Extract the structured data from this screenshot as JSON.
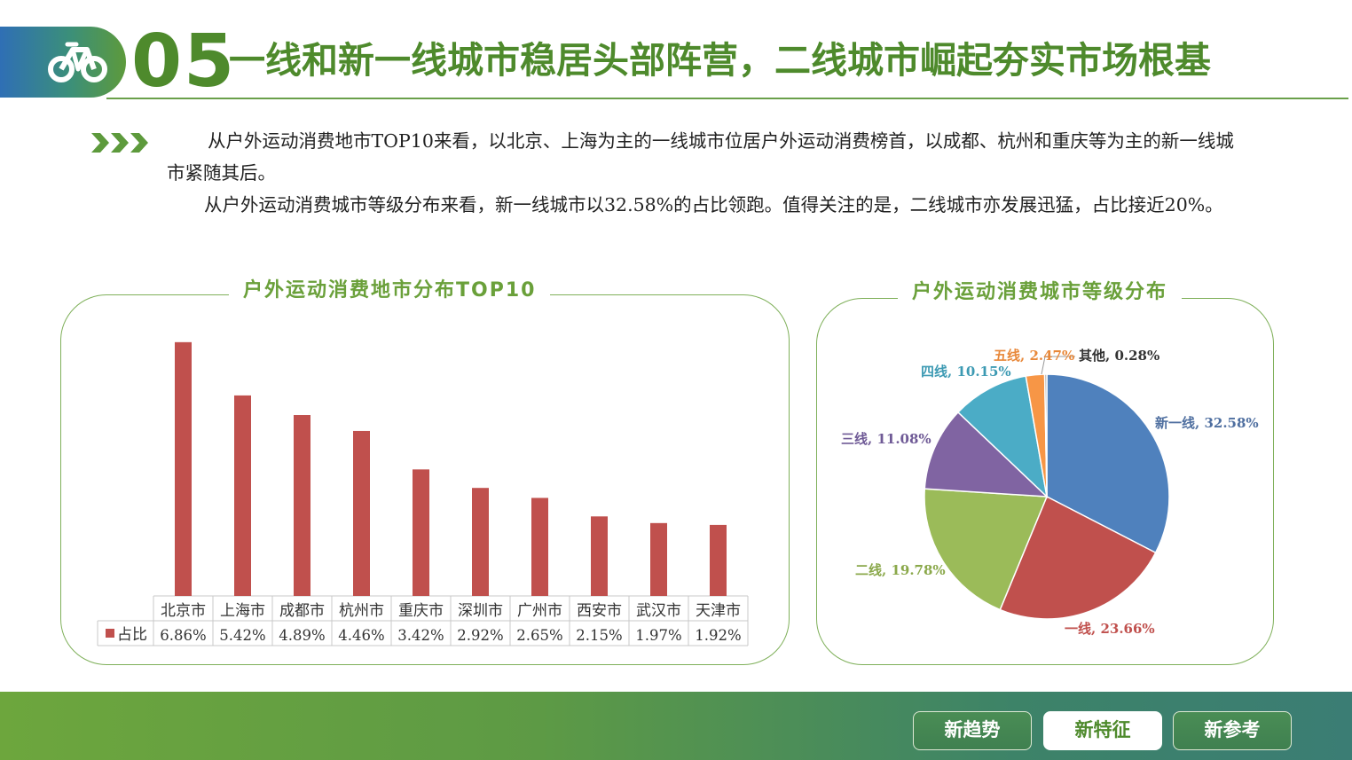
{
  "header": {
    "number": "05",
    "title": "一线和新一线城市稳居头部阵营，二线城市崛起夯实市场根基",
    "icon": "bicycle-icon"
  },
  "intro": {
    "paragraph1": "从户外运动消费地市TOP10来看，以北京、上海为主的一线城市位居户外运动消费榜首，以成都、杭州和重庆等为主的新一线城市紧随其后。",
    "paragraph2": "从户外运动消费城市等级分布来看，新一线城市以32.58%的占比领跑。值得关注的是，二线城市亦发展迅猛，占比接近20%。"
  },
  "colors": {
    "accent_green": "#4e8a2c",
    "bar_red": "#c0504d",
    "pie": [
      "#4f81bd",
      "#c0504d",
      "#9bbb59",
      "#8064a2",
      "#4bacc6",
      "#f79646",
      "#a5a5a5"
    ]
  },
  "chart_data": [
    {
      "type": "bar",
      "title": "户外运动消费地市分布TOP10",
      "categories": [
        "北京市",
        "上海市",
        "成都市",
        "杭州市",
        "重庆市",
        "深圳市",
        "广州市",
        "西安市",
        "武汉市",
        "天津市"
      ],
      "series": [
        {
          "name": "占比",
          "values": [
            6.86,
            5.42,
            4.89,
            4.46,
            3.42,
            2.92,
            2.65,
            2.15,
            1.97,
            1.92
          ],
          "labels": [
            "6.86%",
            "5.42%",
            "4.89%",
            "4.46%",
            "3.42%",
            "2.92%",
            "2.65%",
            "2.15%",
            "1.97%",
            "1.92%"
          ]
        }
      ],
      "ylim": [
        0,
        7
      ],
      "grid": false,
      "legend": "data-table-left"
    },
    {
      "type": "pie",
      "title": "户外运动消费城市等级分布",
      "slices": [
        {
          "label": "新一线, 32.58%",
          "value": 32.58
        },
        {
          "label": "一线, 23.66%",
          "value": 23.66
        },
        {
          "label": "二线, 19.78%",
          "value": 19.78
        },
        {
          "label": "三线, 11.08%",
          "value": 11.08
        },
        {
          "label": "四线, 10.15%",
          "value": 10.15
        },
        {
          "label": "五线, 2.47%",
          "value": 2.47
        },
        {
          "label": "其他, 0.28%",
          "value": 0.28
        }
      ]
    }
  ],
  "footer": {
    "buttons": [
      {
        "label": "新趋势",
        "active": false
      },
      {
        "label": "新特征",
        "active": true
      },
      {
        "label": "新参考",
        "active": false
      }
    ]
  }
}
